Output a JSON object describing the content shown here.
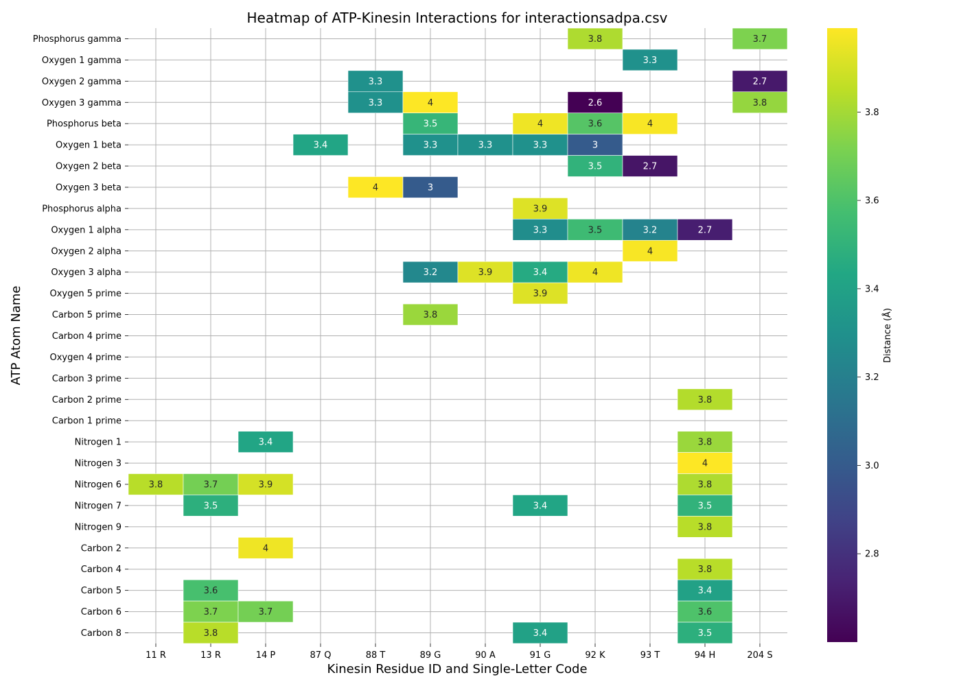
{
  "chart_data": {
    "type": "heatmap",
    "title": "Heatmap of ATP-Kinesin Interactions for interactionsadpa.csv",
    "xlabel": "Kinesin Residue ID and Single-Letter Code",
    "ylabel": "ATP Atom Name",
    "x_categories": [
      "11 R",
      "13 R",
      "14 P",
      "87 Q",
      "88 T",
      "89 G",
      "90 A",
      "91 G",
      "92 K",
      "93 T",
      "94 H",
      "204 S"
    ],
    "y_categories": [
      "Phosphorus gamma",
      "Oxygen 1 gamma",
      "Oxygen 2 gamma",
      "Oxygen 3 gamma",
      "Phosphorus beta",
      "Oxygen 1 beta",
      "Oxygen 2 beta",
      "Oxygen 3 beta",
      "Phosphorus alpha",
      "Oxygen 1 alpha",
      "Oxygen 2 alpha",
      "Oxygen 3 alpha",
      "Oxygen 5 prime",
      "Carbon 5 prime",
      "Carbon 4 prime",
      "Oxygen 4 prime",
      "Carbon 3 prime",
      "Carbon 2 prime",
      "Carbon 1 prime",
      "Nitrogen 1",
      "Nitrogen 3",
      "Nitrogen 6",
      "Nitrogen 7",
      "Nitrogen 9",
      "Carbon 2",
      "Carbon 4",
      "Carbon 5",
      "Carbon 6",
      "Carbon 8"
    ],
    "cells": [
      {
        "y": "Phosphorus gamma",
        "x": "92 K",
        "value": 3.82,
        "label": "3.8"
      },
      {
        "y": "Phosphorus gamma",
        "x": "204 S",
        "value": 3.72,
        "label": "3.7"
      },
      {
        "y": "Oxygen 1 gamma",
        "x": "93 T",
        "value": 3.3,
        "label": "3.3"
      },
      {
        "y": "Oxygen 2 gamma",
        "x": "88 T",
        "value": 3.3,
        "label": "3.3"
      },
      {
        "y": "Oxygen 2 gamma",
        "x": "204 S",
        "value": 2.7,
        "label": "2.7"
      },
      {
        "y": "Oxygen 3 gamma",
        "x": "88 T",
        "value": 3.3,
        "label": "3.3"
      },
      {
        "y": "Oxygen 3 gamma",
        "x": "89 G",
        "value": 3.99,
        "label": "4"
      },
      {
        "y": "Oxygen 3 gamma",
        "x": "92 K",
        "value": 2.6,
        "label": "2.6"
      },
      {
        "y": "Oxygen 3 gamma",
        "x": "204 S",
        "value": 3.77,
        "label": "3.8"
      },
      {
        "y": "Phosphorus beta",
        "x": "89 G",
        "value": 3.52,
        "label": "3.5"
      },
      {
        "y": "Phosphorus beta",
        "x": "91 G",
        "value": 3.96,
        "label": "4"
      },
      {
        "y": "Phosphorus beta",
        "x": "92 K",
        "value": 3.62,
        "label": "3.6"
      },
      {
        "y": "Phosphorus beta",
        "x": "93 T",
        "value": 3.98,
        "label": "4"
      },
      {
        "y": "Oxygen 1 beta",
        "x": "87 Q",
        "value": 3.42,
        "label": "3.4"
      },
      {
        "y": "Oxygen 1 beta",
        "x": "89 G",
        "value": 3.3,
        "label": "3.3"
      },
      {
        "y": "Oxygen 1 beta",
        "x": "90 A",
        "value": 3.3,
        "label": "3.3"
      },
      {
        "y": "Oxygen 1 beta",
        "x": "91 G",
        "value": 3.3,
        "label": "3.3"
      },
      {
        "y": "Oxygen 1 beta",
        "x": "92 K",
        "value": 3.0,
        "label": "3"
      },
      {
        "y": "Oxygen 2 beta",
        "x": "92 K",
        "value": 3.5,
        "label": "3.5"
      },
      {
        "y": "Oxygen 2 beta",
        "x": "93 T",
        "value": 2.68,
        "label": "2.7"
      },
      {
        "y": "Oxygen 3 beta",
        "x": "88 T",
        "value": 3.99,
        "label": "4"
      },
      {
        "y": "Oxygen 3 beta",
        "x": "89 G",
        "value": 3.0,
        "label": "3"
      },
      {
        "y": "Phosphorus alpha",
        "x": "91 G",
        "value": 3.92,
        "label": "3.9"
      },
      {
        "y": "Oxygen 1 alpha",
        "x": "91 G",
        "value": 3.28,
        "label": "3.3"
      },
      {
        "y": "Oxygen 1 alpha",
        "x": "92 K",
        "value": 3.55,
        "label": "3.5"
      },
      {
        "y": "Oxygen 1 alpha",
        "x": "93 T",
        "value": 3.22,
        "label": "3.2"
      },
      {
        "y": "Oxygen 1 alpha",
        "x": "94 H",
        "value": 2.72,
        "label": "2.7"
      },
      {
        "y": "Oxygen 2 alpha",
        "x": "93 T",
        "value": 3.98,
        "label": "4"
      },
      {
        "y": "Oxygen 3 alpha",
        "x": "89 G",
        "value": 3.25,
        "label": "3.2"
      },
      {
        "y": "Oxygen 3 alpha",
        "x": "90 A",
        "value": 3.92,
        "label": "3.9"
      },
      {
        "y": "Oxygen 3 alpha",
        "x": "91 G",
        "value": 3.45,
        "label": "3.4"
      },
      {
        "y": "Oxygen 3 alpha",
        "x": "92 K",
        "value": 3.96,
        "label": "4"
      },
      {
        "y": "Oxygen 5 prime",
        "x": "91 G",
        "value": 3.92,
        "label": "3.9"
      },
      {
        "y": "Carbon 5 prime",
        "x": "89 G",
        "value": 3.78,
        "label": "3.8"
      },
      {
        "y": "Carbon 2 prime",
        "x": "94 H",
        "value": 3.83,
        "label": "3.8"
      },
      {
        "y": "Nitrogen 1",
        "x": "14 P",
        "value": 3.42,
        "label": "3.4"
      },
      {
        "y": "Nitrogen 1",
        "x": "94 H",
        "value": 3.78,
        "label": "3.8"
      },
      {
        "y": "Nitrogen 3",
        "x": "94 H",
        "value": 3.99,
        "label": "4"
      },
      {
        "y": "Nitrogen 6",
        "x": "11 R",
        "value": 3.84,
        "label": "3.8"
      },
      {
        "y": "Nitrogen 6",
        "x": "13 R",
        "value": 3.7,
        "label": "3.7"
      },
      {
        "y": "Nitrogen 6",
        "x": "14 P",
        "value": 3.9,
        "label": "3.9"
      },
      {
        "y": "Nitrogen 6",
        "x": "94 H",
        "value": 3.82,
        "label": "3.8"
      },
      {
        "y": "Nitrogen 7",
        "x": "13 R",
        "value": 3.48,
        "label": "3.5"
      },
      {
        "y": "Nitrogen 7",
        "x": "91 G",
        "value": 3.42,
        "label": "3.4"
      },
      {
        "y": "Nitrogen 7",
        "x": "94 H",
        "value": 3.5,
        "label": "3.5"
      },
      {
        "y": "Nitrogen 9",
        "x": "94 H",
        "value": 3.84,
        "label": "3.8"
      },
      {
        "y": "Carbon 2",
        "x": "14 P",
        "value": 3.96,
        "label": "4"
      },
      {
        "y": "Carbon 4",
        "x": "94 H",
        "value": 3.84,
        "label": "3.8"
      },
      {
        "y": "Carbon 5",
        "x": "13 R",
        "value": 3.58,
        "label": "3.6"
      },
      {
        "y": "Carbon 5",
        "x": "94 H",
        "value": 3.4,
        "label": "3.4"
      },
      {
        "y": "Carbon 6",
        "x": "13 R",
        "value": 3.72,
        "label": "3.7"
      },
      {
        "y": "Carbon 6",
        "x": "14 P",
        "value": 3.7,
        "label": "3.7"
      },
      {
        "y": "Carbon 6",
        "x": "94 H",
        "value": 3.6,
        "label": "3.6"
      },
      {
        "y": "Carbon 8",
        "x": "13 R",
        "value": 3.84,
        "label": "3.8"
      },
      {
        "y": "Carbon 8",
        "x": "91 G",
        "value": 3.4,
        "label": "3.4"
      },
      {
        "y": "Carbon 8",
        "x": "94 H",
        "value": 3.48,
        "label": "3.5"
      }
    ],
    "colormap": "viridis",
    "colorbar": {
      "label": "Distance (Å)",
      "range": [
        2.6,
        3.99
      ],
      "ticks": [
        2.8,
        3.0,
        3.2,
        3.4,
        3.6,
        3.8
      ],
      "tick_labels": [
        "2.8",
        "3.0",
        "3.2",
        "3.4",
        "3.6",
        "3.8"
      ]
    },
    "grid": true
  }
}
